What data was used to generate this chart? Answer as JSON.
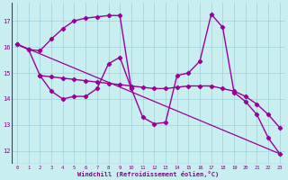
{
  "bg_color": "#c8eef0",
  "line_color": "#990099",
  "grid_color": "#a0d0d8",
  "xlabel": "Windchill (Refroidissement éolien,°C)",
  "xlabel_color": "#880088",
  "tick_color": "#880088",
  "xlim": [
    -0.5,
    23.5
  ],
  "ylim": [
    11.5,
    17.7
  ],
  "yticks": [
    12,
    13,
    14,
    15,
    16,
    17
  ],
  "xticks": [
    0,
    1,
    2,
    3,
    4,
    5,
    6,
    7,
    8,
    9,
    10,
    11,
    12,
    13,
    14,
    15,
    16,
    17,
    18,
    19,
    20,
    21,
    22,
    23
  ],
  "series": [
    {
      "x": [
        0,
        1,
        2,
        3,
        4,
        5,
        6,
        7,
        8,
        9,
        10,
        11,
        12,
        13,
        14,
        15,
        16,
        17,
        18,
        19,
        20,
        21,
        22,
        23
      ],
      "y": [
        16.1,
        15.9,
        14.9,
        14.3,
        14.0,
        14.1,
        14.1,
        14.4,
        15.35,
        15.6,
        14.4,
        13.3,
        13.05,
        13.1,
        14.9,
        15.0,
        15.45,
        17.25,
        16.75,
        14.25,
        13.9,
        13.4,
        12.5,
        11.9
      ],
      "marker": "D",
      "markersize": 2.2,
      "linewidth": 1.0
    },
    {
      "x": [
        0,
        1,
        2,
        3,
        4,
        5,
        6,
        7,
        8,
        9,
        10
      ],
      "y": [
        16.1,
        15.9,
        15.85,
        16.3,
        16.7,
        17.0,
        17.1,
        17.15,
        17.2,
        17.2,
        14.4
      ],
      "marker": "D",
      "markersize": 2.2,
      "linewidth": 1.0
    },
    {
      "x": [
        2,
        3,
        4,
        5,
        6,
        7,
        8,
        9,
        10,
        11,
        12,
        13,
        14,
        15,
        16,
        17,
        18,
        19,
        20,
        21,
        22,
        23
      ],
      "y": [
        14.9,
        14.85,
        14.8,
        14.75,
        14.7,
        14.65,
        14.6,
        14.55,
        14.5,
        14.45,
        14.4,
        14.4,
        14.45,
        14.5,
        14.5,
        14.5,
        14.4,
        14.3,
        14.1,
        13.8,
        13.4,
        12.9
      ],
      "marker": "D",
      "markersize": 2.2,
      "linewidth": 1.0
    },
    {
      "x": [
        0,
        23
      ],
      "y": [
        16.1,
        11.9
      ],
      "marker": null,
      "markersize": 0,
      "linewidth": 0.9
    }
  ]
}
